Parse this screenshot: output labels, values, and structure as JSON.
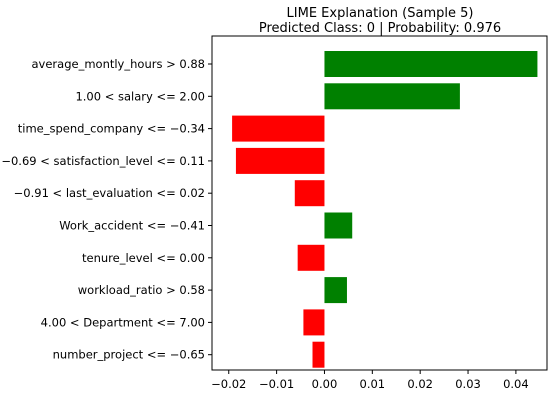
{
  "chart_data": {
    "type": "bar",
    "orientation": "horizontal",
    "title": "LIME Explanation (Sample 5)",
    "subtitle": "Predicted Class: 0 | Probability: 0.976",
    "xlabel": "",
    "ylabel": "",
    "xlim": [
      -0.0235,
      0.0465
    ],
    "xticks": [
      -0.02,
      -0.01,
      0.0,
      0.01,
      0.02,
      0.03,
      0.04
    ],
    "xtick_labels": [
      "−0.02",
      "−0.01",
      "0.00",
      "0.01",
      "0.02",
      "0.03",
      "0.04"
    ],
    "grid": false,
    "categories": [
      "average_montly_hours > 0.88",
      "1.00 < salary <= 2.00",
      "time_spend_company <= −0.34",
      "−0.69 < satisfaction_level <= 0.11",
      "−0.91 < last_evaluation <= 0.02",
      "Work_accident <= −0.41",
      "tenure_level <= 0.00",
      "workload_ratio > 0.58",
      "4.00 < Department <= 7.00",
      "number_project <= −0.65"
    ],
    "values": [
      0.0445,
      0.0283,
      -0.0193,
      -0.0185,
      -0.0062,
      0.0058,
      -0.0056,
      0.0047,
      -0.0044,
      -0.0025
    ],
    "colors": {
      "positive": "#008000",
      "negative": "#ff0000"
    }
  }
}
